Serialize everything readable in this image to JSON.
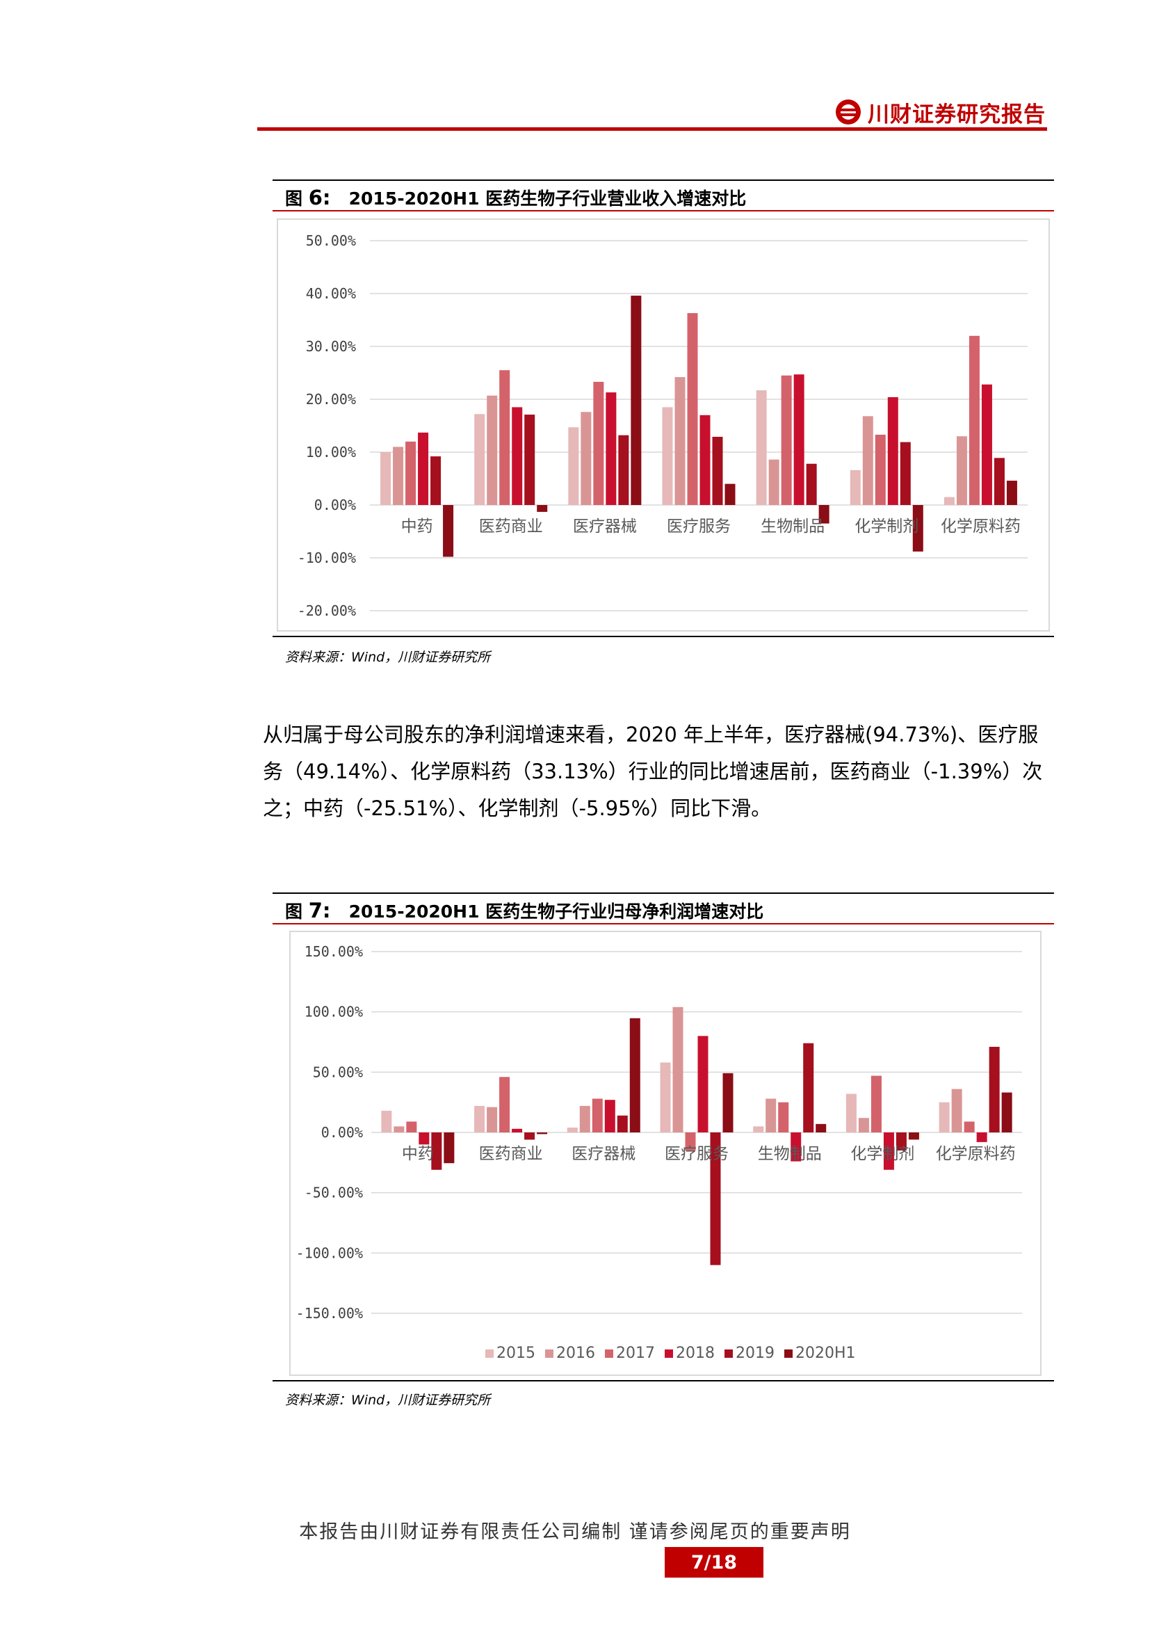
{
  "header": {
    "brand": "川财证券研究报告"
  },
  "figure6": {
    "label": "图",
    "num": "6:",
    "title": "2015-2020H1 医药生物子行业营业收入增速对比",
    "source": "资料来源：Wind，川财证券研究所"
  },
  "body": {
    "paragraph": "从归属于母公司股东的净利润增速来看，2020 年上半年，医疗器械(94.73%)、医疗服务（49.14%）、化学原料药（33.13%）行业的同比增速居前，医药商业（-1.39%）次之；中药（-25.51%）、化学制剂（-5.95%）同比下滑。"
  },
  "figure7": {
    "label": "图",
    "num": "7:",
    "title": "2015-2020H1 医药生物子行业归母净利润增速对比",
    "source": "资料来源：Wind，川财证券研究所"
  },
  "footer": {
    "note": "本报告由川财证券有限责任公司编制  谨请参阅尾页的重要声明",
    "page": "7/18"
  },
  "colors": {
    "brand": "#c00000",
    "series": [
      "#e6b8b8",
      "#d99594",
      "#d4626a",
      "#c8102e",
      "#a50f1e",
      "#8b0d16"
    ]
  },
  "chart_data": [
    {
      "type": "bar",
      "categories": [
        "中药",
        "医药商业",
        "医疗器械",
        "医疗服务",
        "生物制品",
        "化学制剂",
        "化学原料药"
      ],
      "series": [
        {
          "values": [
            10.0,
            17.2,
            14.7,
            18.5,
            21.7,
            6.6,
            1.5
          ]
        },
        {
          "values": [
            11.0,
            20.7,
            17.6,
            24.2,
            8.6,
            16.8,
            13.0
          ]
        },
        {
          "values": [
            12.0,
            25.5,
            23.3,
            36.3,
            24.5,
            13.3,
            32.0
          ]
        },
        {
          "values": [
            13.7,
            18.5,
            21.3,
            17.0,
            24.7,
            20.4,
            22.8
          ]
        },
        {
          "values": [
            9.2,
            17.1,
            13.2,
            12.9,
            7.8,
            11.9,
            8.9
          ]
        },
        {
          "values": [
            -9.8,
            -1.3,
            39.6,
            4.0,
            -3.5,
            -8.8,
            4.6
          ]
        }
      ],
      "ylim": [
        -20,
        50
      ],
      "yticks": [
        "50.00%",
        "40.00%",
        "30.00%",
        "20.00%",
        "10.00%",
        "0.00%",
        "-10.00%",
        "-20.00%"
      ],
      "grid": true
    },
    {
      "type": "bar",
      "categories": [
        "中药",
        "医药商业",
        "医疗器械",
        "医疗服务",
        "生物制品",
        "化学制剂",
        "化学原料药"
      ],
      "series": [
        {
          "name": "2015",
          "values": [
            18,
            22,
            4,
            58,
            5,
            32,
            25
          ]
        },
        {
          "name": "2016",
          "values": [
            5,
            21,
            22,
            104,
            28,
            12,
            36
          ]
        },
        {
          "name": "2017",
          "values": [
            9,
            46,
            28,
            -15,
            25,
            47,
            9
          ]
        },
        {
          "name": "2018",
          "values": [
            -10,
            3,
            27,
            80,
            -24,
            -31,
            -8
          ]
        },
        {
          "name": "2019",
          "values": [
            -31,
            -6,
            14,
            -110,
            74,
            -15,
            71
          ]
        },
        {
          "name": "2020H1",
          "values": [
            -25.51,
            -1.39,
            94.73,
            49.14,
            7,
            -5.95,
            33.13
          ]
        }
      ],
      "ylim": [
        -150,
        150
      ],
      "yticks": [
        "150.00%",
        "100.00%",
        "50.00%",
        "0.00%",
        "-50.00%",
        "-100.00%",
        "-150.00%"
      ],
      "legend": "bottom",
      "grid": true
    }
  ]
}
